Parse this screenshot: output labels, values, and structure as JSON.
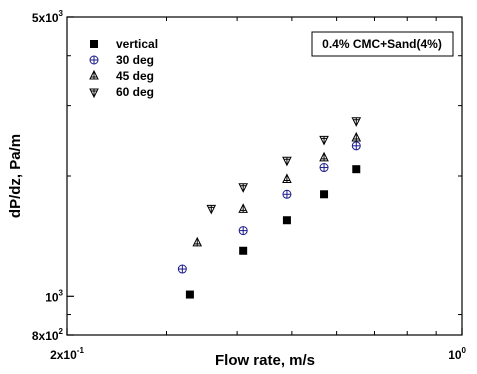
{
  "chart_data": {
    "type": "scatter",
    "title": "",
    "xlabel": "Flow rate, m/s",
    "ylabel": "dP/dz, Pa/m",
    "x_scale": "log",
    "y_scale": "log",
    "xlim": [
      0.2,
      1.0
    ],
    "ylim": [
      800,
      5000
    ],
    "x_ticks": [
      {
        "value": 0.2,
        "mantissa": "2x10",
        "exp": "-1"
      },
      {
        "value": 1.0,
        "mantissa": "10",
        "exp": "0"
      }
    ],
    "y_ticks": [
      {
        "value": 800,
        "mantissa": "8x10",
        "exp": "2"
      },
      {
        "value": 1000,
        "mantissa": "10",
        "exp": "3"
      },
      {
        "value": 5000,
        "mantissa": "5x10",
        "exp": "3"
      }
    ],
    "grid": false,
    "legend_position": "top-left",
    "annotation": "0.4% CMC+Sand(4%)",
    "series": [
      {
        "name": "vertical",
        "marker": "square-filled",
        "color": "#000000",
        "x": [
          0.33,
          0.41,
          0.49,
          0.57,
          0.65
        ],
        "y": [
          1010,
          1300,
          1550,
          1800,
          2080
        ]
      },
      {
        "name": "30 deg",
        "marker": "circle-plus",
        "color": "#1a1a8c",
        "x": [
          0.32,
          0.41,
          0.49,
          0.57,
          0.65
        ],
        "y": [
          1170,
          1460,
          1800,
          2100,
          2380
        ]
      },
      {
        "name": "45 deg",
        "marker": "triangle-up",
        "color": "#000000",
        "x": [
          0.34,
          0.41,
          0.49,
          0.57,
          0.65
        ],
        "y": [
          1360,
          1650,
          1960,
          2220,
          2490
        ]
      },
      {
        "name": "60 deg",
        "marker": "triangle-down",
        "color": "#000000",
        "x": [
          0.36,
          0.41,
          0.49,
          0.57,
          0.65
        ],
        "y": [
          1660,
          1880,
          2190,
          2470,
          2750
        ]
      }
    ]
  }
}
